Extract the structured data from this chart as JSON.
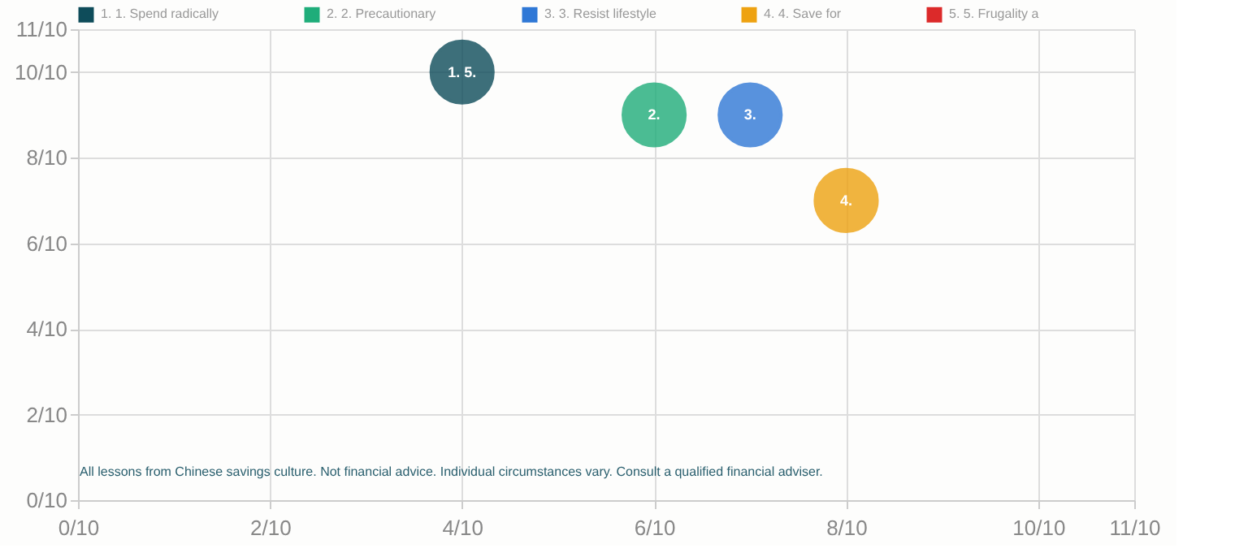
{
  "chart_data": {
    "type": "bubble",
    "xlim": [
      0,
      1.1
    ],
    "ylim": [
      0,
      1.1
    ],
    "xticks": [
      {
        "value": 0,
        "label": "0/10"
      },
      {
        "value": 0.2,
        "label": "2/10"
      },
      {
        "value": 0.4,
        "label": "4/10"
      },
      {
        "value": 0.6,
        "label": "6/10"
      },
      {
        "value": 0.8,
        "label": "8/10"
      },
      {
        "value": 1.0,
        "label": "10/10"
      },
      {
        "value": 1.1,
        "label": "11/10"
      }
    ],
    "yticks": [
      {
        "value": 0,
        "label": "0/10"
      },
      {
        "value": 0.2,
        "label": "2/10"
      },
      {
        "value": 0.4,
        "label": "4/10"
      },
      {
        "value": 0.6,
        "label": "6/10"
      },
      {
        "value": 0.8,
        "label": "8/10"
      },
      {
        "value": 1.0,
        "label": "10/10"
      },
      {
        "value": 1.1,
        "label": "11/10"
      }
    ],
    "grid": true,
    "legend": "top",
    "series": [
      {
        "name": "1. 1. Spend radically",
        "color": "#0e4c5a",
        "x": [
          0.4
        ],
        "values": [
          1.0
        ],
        "sizes": [
          1
        ]
      },
      {
        "name": "2. 2. Precautionary",
        "color": "#1fad7a",
        "x": [
          0.6
        ],
        "values": [
          0.9
        ],
        "sizes": [
          1
        ]
      },
      {
        "name": "3. 3. Resist lifestyle",
        "color": "#2f78d6",
        "x": [
          0.7
        ],
        "values": [
          0.9
        ],
        "sizes": [
          1
        ]
      },
      {
        "name": "4. 4. Save for",
        "color": "#eea211",
        "x": [
          0.8
        ],
        "values": [
          0.7
        ],
        "sizes": [
          1
        ]
      },
      {
        "name": "5. 5. Frugality a",
        "color": "#dc2a2a",
        "x": [
          null
        ],
        "values": [
          null
        ],
        "sizes": [
          null
        ]
      }
    ],
    "annotations": [
      {
        "text": "1.",
        "x": 0.4,
        "y": 1.0
      },
      {
        "text": "2.",
        "x": 0.6,
        "y": 0.9
      },
      {
        "text": "3.",
        "x": 0.7,
        "y": 0.9
      },
      {
        "text": "4.",
        "x": 0.8,
        "y": 0.7
      },
      {
        "text": "5.",
        "x": 0.4,
        "y": 1.0
      },
      "All lessons from Chinese savings culture. Not financial advice. Individual circumstances vary. Consult a qualified financial adviser."
    ]
  }
}
